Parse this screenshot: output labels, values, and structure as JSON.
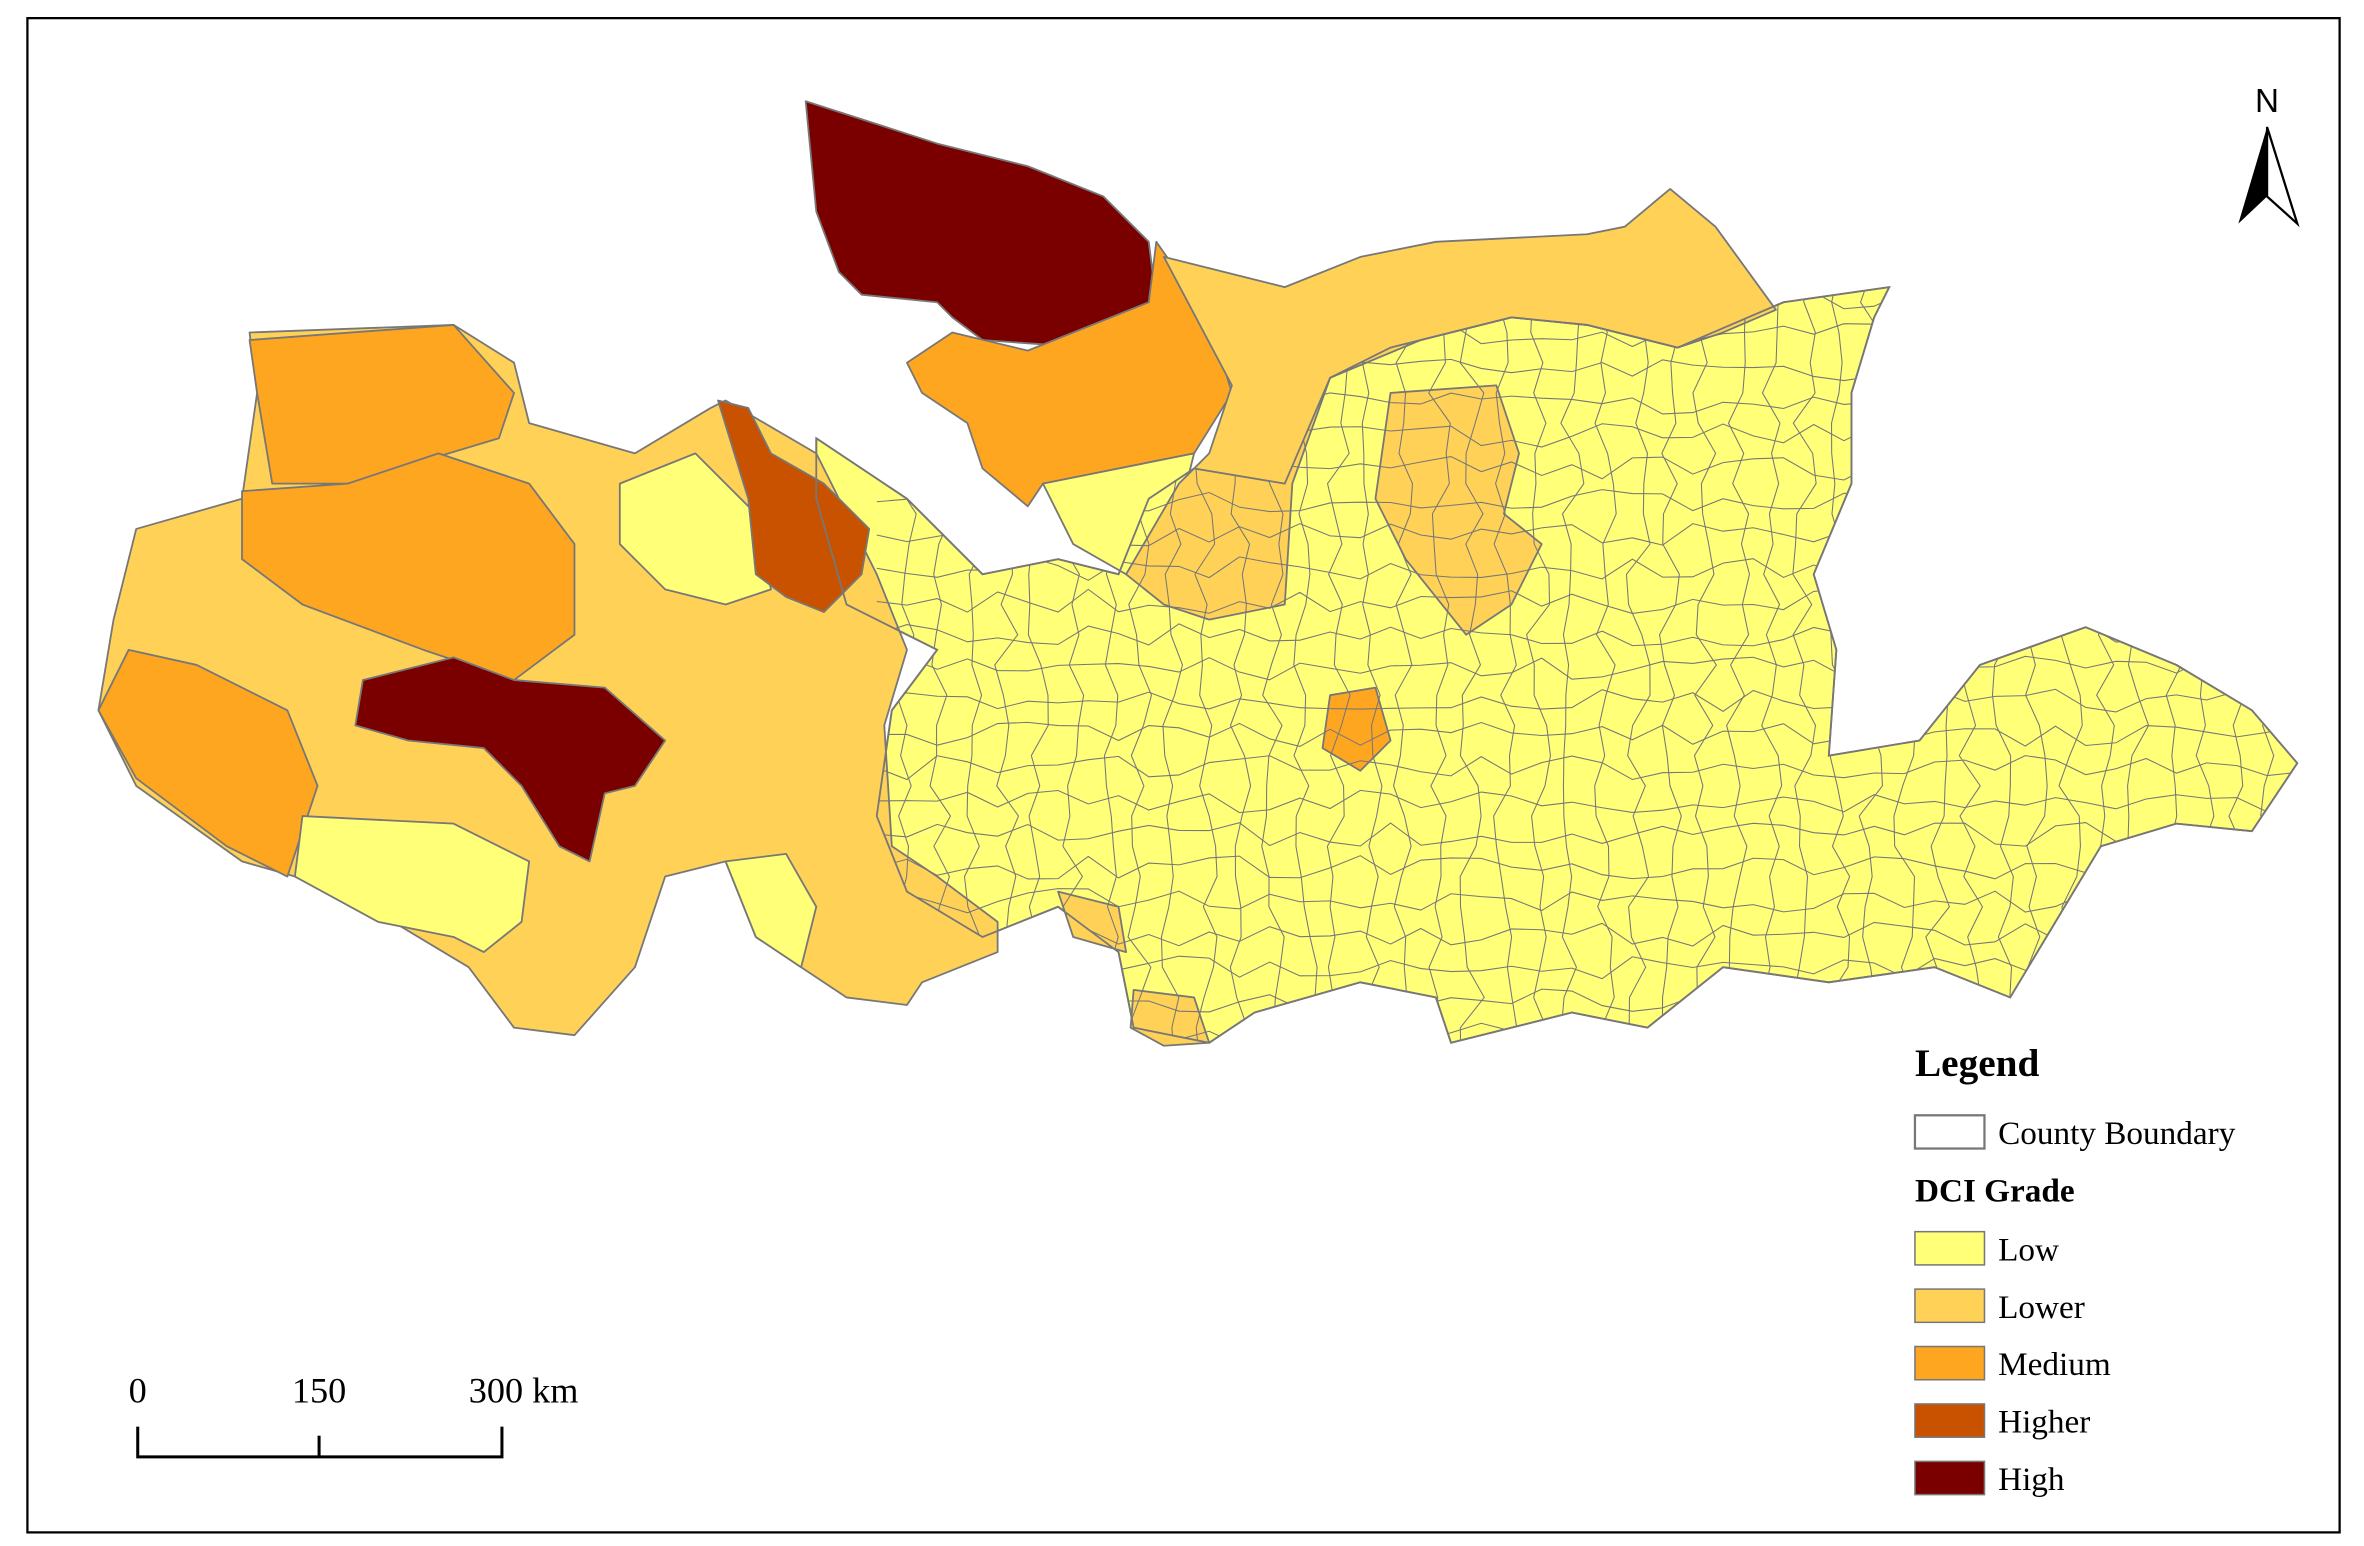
{
  "north_label": "N",
  "legend": {
    "title": "Legend",
    "boundary_label": "County Boundary",
    "grade_title": "DCI Grade",
    "grades": [
      {
        "label": "Low",
        "color": "#FFFF78"
      },
      {
        "label": "Lower",
        "color": "#FFD257"
      },
      {
        "label": "Medium",
        "color": "#FFA621"
      },
      {
        "label": "Higher",
        "color": "#C85200"
      },
      {
        "label": "High",
        "color": "#7A0000"
      }
    ]
  },
  "scale_bar": {
    "labels": [
      "0",
      "150",
      "300 km"
    ]
  }
}
